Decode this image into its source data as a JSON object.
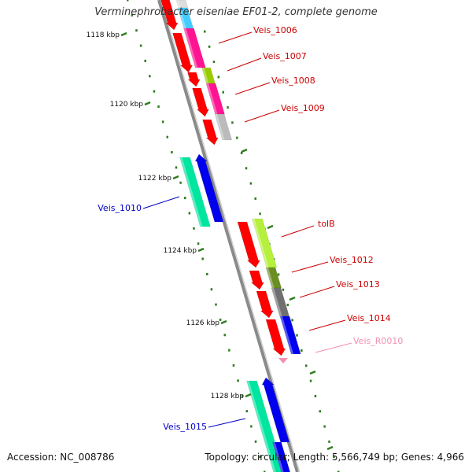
{
  "title": "Verminephrobacter eiseniae EF01-2, complete genome",
  "footer": {
    "accession": "Accession: NC_008786",
    "summary": "Topology: circular; Length: 5,566,749 bp; Genes: 4,966"
  },
  "scale": {
    "ticks": [
      "1118 kbp",
      "1120 kbp",
      "1122 kbp",
      "1124 kbp",
      "1126 kbp",
      "1128 kbp"
    ]
  },
  "colors": {
    "backbone": "#8a8a8a",
    "tick": "#2e7d1e",
    "forward_label": "#cc0000",
    "reverse_label": "#0000cc",
    "rna_label": "#f48fb1"
  },
  "features": [
    {
      "label": "Veis_1006",
      "strand": "forward",
      "color": "#ff1493"
    },
    {
      "label": "Veis_1007",
      "strand": "forward",
      "color": "#99cc00"
    },
    {
      "label": "Veis_1008",
      "strand": "forward",
      "color": "#ff1493"
    },
    {
      "label": "Veis_1009",
      "strand": "forward",
      "color": "#bbbbbb"
    },
    {
      "label": "Veis_1010",
      "strand": "reverse",
      "color": "#00e6a0"
    },
    {
      "label": "tolB",
      "strand": "forward",
      "color": "#b5f03c"
    },
    {
      "label": "Veis_1012",
      "strand": "forward",
      "color": "#6b8e23"
    },
    {
      "label": "Veis_1013",
      "strand": "forward",
      "color": "#707070"
    },
    {
      "label": "Veis_1014",
      "strand": "forward",
      "color": "#0000ee"
    },
    {
      "label": "Veis_R0010",
      "strand": "forward",
      "color": "#f48fb1"
    },
    {
      "label": "Veis_1015",
      "strand": "reverse",
      "color": "#00e6a0"
    }
  ]
}
